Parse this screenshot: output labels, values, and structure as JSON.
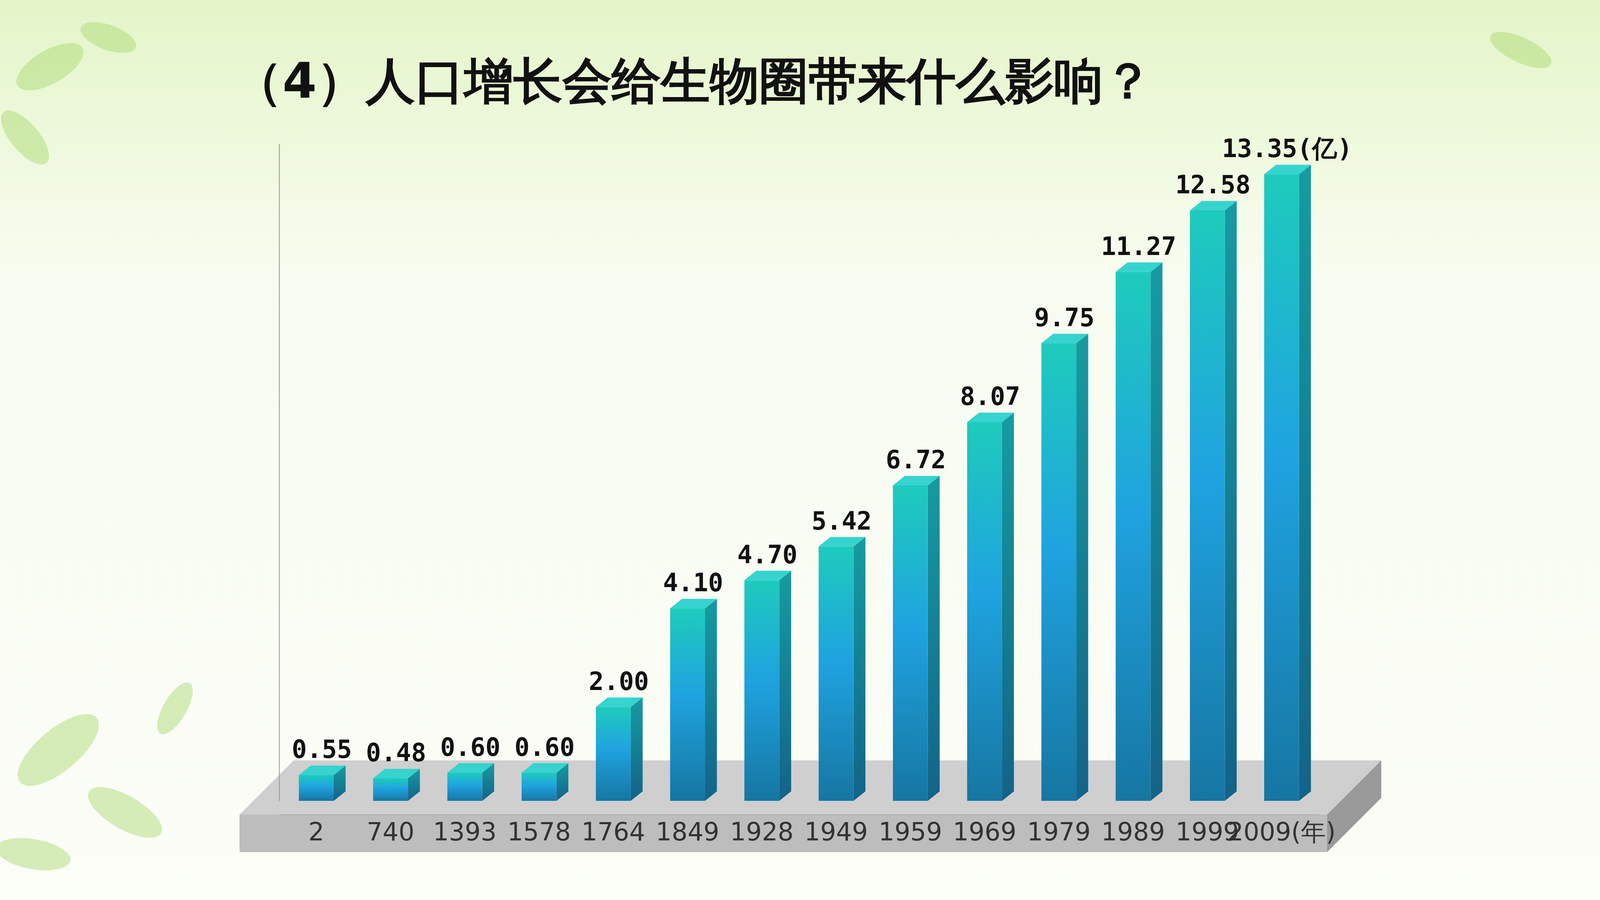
{
  "chart_data": {
    "type": "bar",
    "title": "（4）人口增长会给生物圈带来什么影响？",
    "categories": [
      "2",
      "740",
      "1393",
      "1578",
      "1764",
      "1849",
      "1928",
      "1949",
      "1959",
      "1969",
      "1979",
      "1989",
      "1999",
      "2009(年)"
    ],
    "values": [
      0.55,
      0.48,
      0.6,
      0.6,
      2.0,
      4.1,
      4.7,
      5.42,
      6.72,
      8.07,
      9.75,
      11.27,
      12.58,
      13.35
    ],
    "value_labels": [
      "0.55",
      "0.48",
      "0.60",
      "0.60",
      "2.00",
      "4.10",
      "4.70",
      "5.42",
      "6.72",
      "8.07",
      "9.75",
      "11.27",
      "12.58",
      "13.35(亿)"
    ],
    "color": "#1fa3e0",
    "ylim": [
      0,
      14
    ],
    "yticks": [],
    "grid": false,
    "data_labels": true,
    "tick_labels": "x"
  }
}
